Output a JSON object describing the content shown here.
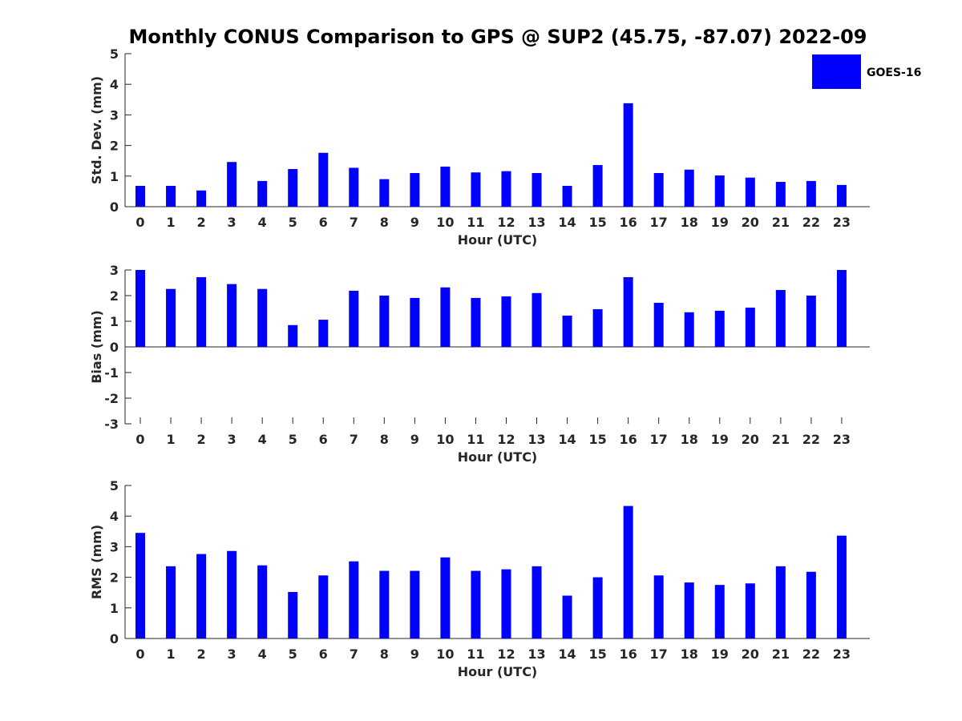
{
  "chart_data": [
    {
      "type": "bar",
      "title": "Monthly CONUS Comparison to GPS @ SUP2 (45.75, -87.07) 2022-09",
      "xlabel": "Hour (UTC)",
      "ylabel": "Std. Dev. (mm)",
      "ylim": [
        0,
        5
      ],
      "yticks": [
        0,
        1,
        2,
        3,
        4,
        5
      ],
      "categories": [
        "0",
        "1",
        "2",
        "3",
        "4",
        "5",
        "6",
        "7",
        "8",
        "9",
        "10",
        "11",
        "12",
        "13",
        "14",
        "15",
        "16",
        "17",
        "18",
        "19",
        "20",
        "21",
        "22",
        "23"
      ],
      "series": [
        {
          "name": "GOES-16",
          "color": "#0000ff",
          "values": [
            0.68,
            0.68,
            0.53,
            1.46,
            0.84,
            1.23,
            1.76,
            1.27,
            0.9,
            1.1,
            1.31,
            1.12,
            1.16,
            1.1,
            0.68,
            1.36,
            3.38,
            1.1,
            1.21,
            1.02,
            0.95,
            0.81,
            0.84,
            0.71
          ]
        }
      ],
      "legend": {
        "position": "top-right",
        "label": "GOES-16"
      }
    },
    {
      "type": "bar",
      "title": "",
      "xlabel": "Hour (UTC)",
      "ylabel": "Bias (mm)",
      "ylim": [
        -3,
        3
      ],
      "yticks": [
        -3,
        -2,
        -1,
        0,
        1,
        2,
        3
      ],
      "categories": [
        "0",
        "1",
        "2",
        "3",
        "4",
        "5",
        "6",
        "7",
        "8",
        "9",
        "10",
        "11",
        "12",
        "13",
        "14",
        "15",
        "16",
        "17",
        "18",
        "19",
        "20",
        "21",
        "22",
        "23"
      ],
      "series": [
        {
          "name": "GOES-16",
          "color": "#0000ff",
          "values": [
            3.0,
            2.26,
            2.72,
            2.45,
            2.26,
            0.85,
            1.06,
            2.19,
            2.0,
            1.91,
            2.32,
            1.91,
            1.97,
            2.1,
            1.22,
            1.47,
            2.72,
            1.72,
            1.35,
            1.41,
            1.53,
            2.22,
            2.0,
            3.0
          ]
        }
      ]
    },
    {
      "type": "bar",
      "title": "",
      "xlabel": "Hour (UTC)",
      "ylabel": "RMS (mm)",
      "ylim": [
        0,
        5
      ],
      "yticks": [
        0,
        1,
        2,
        3,
        4,
        5
      ],
      "categories": [
        "0",
        "1",
        "2",
        "3",
        "4",
        "5",
        "6",
        "7",
        "8",
        "9",
        "10",
        "11",
        "12",
        "13",
        "14",
        "15",
        "16",
        "17",
        "18",
        "19",
        "20",
        "21",
        "22",
        "23"
      ],
      "series": [
        {
          "name": "GOES-16",
          "color": "#0000ff",
          "values": [
            3.45,
            2.36,
            2.76,
            2.86,
            2.39,
            1.52,
            2.06,
            2.52,
            2.21,
            2.21,
            2.65,
            2.21,
            2.26,
            2.36,
            1.4,
            2.0,
            4.33,
            2.06,
            1.83,
            1.75,
            1.8,
            2.36,
            2.18,
            3.36
          ]
        }
      ]
    }
  ]
}
